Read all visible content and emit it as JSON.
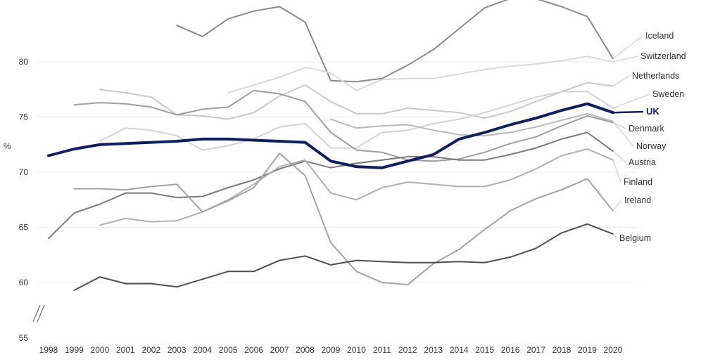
{
  "chart_data": {
    "type": "line",
    "title": "",
    "xlabel": "",
    "ylabel": "%",
    "ylim": [
      55,
      85
    ],
    "yticks": [
      "55",
      "60",
      "65",
      "70",
      "75",
      "80"
    ],
    "y_axis_break": true,
    "grid": true,
    "legend": "inline labels at line ends (right)",
    "categories": [
      "1998",
      "1999",
      "2000",
      "2001",
      "2002",
      "2003",
      "2004",
      "2005",
      "2006",
      "2007",
      "2008",
      "2009",
      "2010",
      "2011",
      "2012",
      "2013",
      "2014",
      "2015",
      "2016",
      "2017",
      "2018",
      "2019",
      "2020"
    ],
    "series": [
      {
        "name": "Iceland",
        "color": "#8a8a8a",
        "values": [
          null,
          null,
          null,
          null,
          null,
          83.3,
          82.3,
          83.9,
          84.6,
          85.0,
          83.6,
          78.3,
          78.2,
          78.5,
          79.7,
          81.1,
          83.0,
          84.9,
          86.8,
          86.6,
          85.0,
          84.1,
          80.3
        ]
      },
      {
        "name": "Switzerland",
        "color": "#d8d8d8",
        "values": [
          null,
          null,
          null,
          null,
          null,
          null,
          null,
          77.2,
          77.9,
          78.6,
          79.5,
          79.0,
          77.4,
          78.4,
          78.5,
          78.5,
          78.9,
          79.3,
          79.6,
          79.8,
          80.1,
          80.5,
          80.0
        ]
      },
      {
        "name": "Netherlands",
        "color": "#c8c8c8",
        "values": [
          null,
          null,
          77.5,
          77.2,
          76.8,
          75.2,
          75.1,
          74.8,
          75.4,
          76.9,
          77.9,
          76.4,
          75.3,
          75.3,
          75.8,
          75.6,
          75.4,
          74.9,
          75.5,
          76.4,
          77.3,
          78.1,
          77.8
        ]
      },
      {
        "name": "Sweden",
        "color": "#d2d2d2",
        "values": [
          null,
          null,
          72.8,
          74.0,
          73.8,
          73.3,
          72.0,
          72.4,
          73.0,
          74.1,
          74.4,
          72.2,
          72.2,
          73.6,
          73.8,
          74.4,
          74.8,
          75.4,
          76.1,
          76.8,
          77.3,
          77.3,
          75.8
        ]
      },
      {
        "name": "UK",
        "color": "#0f1f5c",
        "values": [
          71.5,
          72.1,
          72.5,
          72.6,
          72.7,
          72.8,
          73.0,
          73.0,
          72.9,
          72.8,
          72.7,
          71.0,
          70.5,
          70.4,
          71.0,
          71.6,
          73.0,
          73.6,
          74.3,
          74.9,
          75.6,
          76.2,
          75.4
        ]
      },
      {
        "name": "Denmark",
        "color": "#9e9e9e",
        "values": [
          null,
          76.1,
          76.3,
          76.2,
          75.9,
          75.2,
          75.7,
          75.9,
          77.4,
          77.1,
          76.4,
          73.6,
          72.0,
          71.8,
          71.1,
          71.0,
          71.2,
          71.8,
          72.6,
          73.2,
          74.2,
          75.1,
          74.5
        ]
      },
      {
        "name": "Norway",
        "color": "#b8b8b8",
        "values": [
          null,
          null,
          null,
          null,
          null,
          null,
          null,
          null,
          null,
          null,
          null,
          74.8,
          74.0,
          74.2,
          74.3,
          73.8,
          73.4,
          73.3,
          73.6,
          74.1,
          74.7,
          75.3,
          74.6
        ]
      },
      {
        "name": "Austria",
        "color": "#7a7a7a",
        "values": [
          64.0,
          66.3,
          67.1,
          68.1,
          68.1,
          67.7,
          67.8,
          68.6,
          69.3,
          70.3,
          71.0,
          70.4,
          70.8,
          71.1,
          71.4,
          71.4,
          71.1,
          71.1,
          71.6,
          72.2,
          73.0,
          73.6,
          71.9
        ]
      },
      {
        "name": "Finland",
        "color": "#b0b0b0",
        "values": [
          null,
          null,
          65.2,
          65.8,
          65.5,
          65.6,
          66.4,
          67.5,
          68.9,
          70.5,
          71.1,
          68.1,
          67.5,
          68.6,
          69.1,
          68.9,
          68.7,
          68.7,
          69.3,
          70.3,
          71.5,
          72.1,
          71.1
        ]
      },
      {
        "name": "Ireland",
        "color": "#a2a2a2",
        "values": [
          null,
          68.5,
          68.5,
          68.4,
          68.7,
          68.9,
          66.4,
          67.4,
          68.6,
          71.7,
          69.7,
          63.6,
          61.0,
          60.0,
          59.8,
          61.7,
          63.0,
          64.8,
          66.5,
          67.6,
          68.4,
          69.4,
          66.5
        ]
      },
      {
        "name": "Belgium",
        "color": "#4f4f4f",
        "values": [
          null,
          59.3,
          60.5,
          59.9,
          59.9,
          59.6,
          60.3,
          61.0,
          61.0,
          62.0,
          62.4,
          61.6,
          62.0,
          61.9,
          61.8,
          61.8,
          61.9,
          61.8,
          62.3,
          63.1,
          64.5,
          65.3,
          64.4
        ]
      }
    ]
  }
}
